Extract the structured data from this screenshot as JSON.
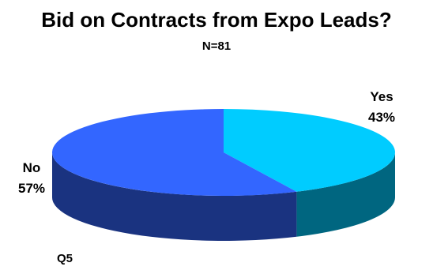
{
  "chart_data": {
    "type": "pie",
    "title": "Bid on Contracts from Expo Leads?",
    "subtitle": "N=81",
    "categories": [
      "Yes",
      "No"
    ],
    "values": [
      43,
      57
    ],
    "labels": [
      "43%",
      "57%"
    ],
    "style": "3d",
    "series": [
      {
        "name": "Yes",
        "value": 43,
        "color_top": "#00ccff",
        "color_side": "#006680"
      },
      {
        "name": "No",
        "value": 57,
        "color_top": "#3366ff",
        "color_side": "#1a3380"
      }
    ],
    "legend": false
  },
  "footnote": "Q5"
}
